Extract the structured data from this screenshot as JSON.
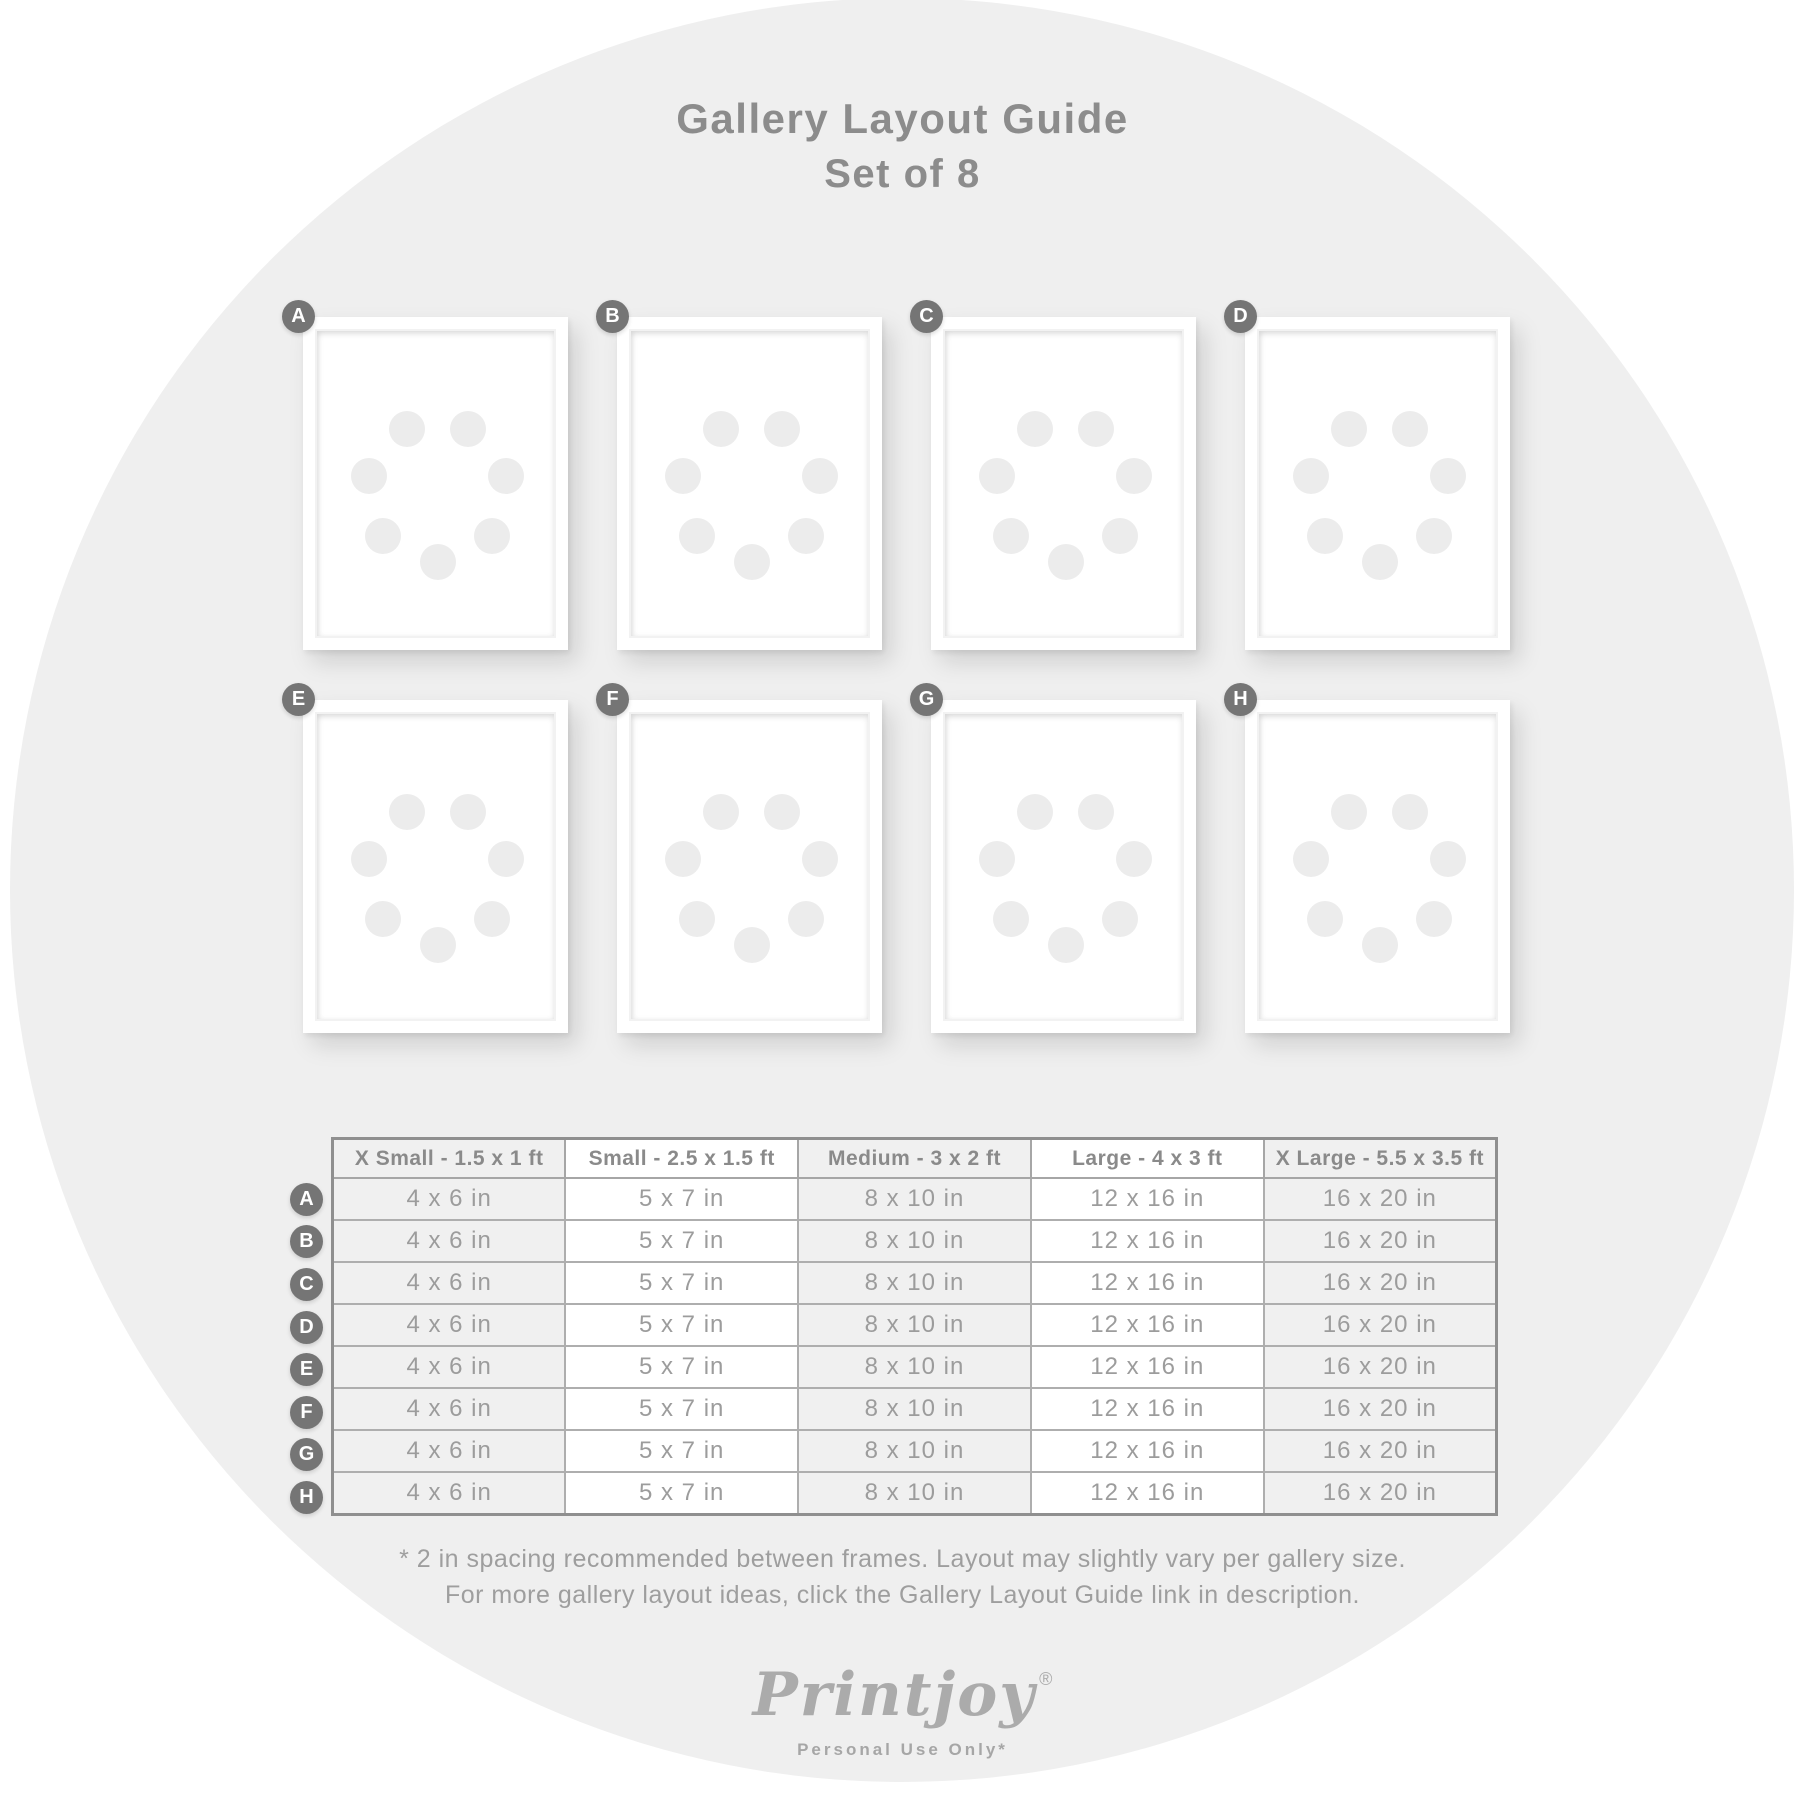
{
  "title": "Gallery Layout Guide",
  "subtitle": "Set of 8",
  "frames": [
    {
      "label": "A"
    },
    {
      "label": "B"
    },
    {
      "label": "C"
    },
    {
      "label": "D"
    },
    {
      "label": "E"
    },
    {
      "label": "F"
    },
    {
      "label": "G"
    },
    {
      "label": "H"
    }
  ],
  "frame_placeholder": {
    "dot_count": 7
  },
  "table": {
    "columns": [
      "X Small - 1.5 x 1 ft",
      "Small - 2.5 x 1.5 ft",
      "Medium - 3 x 2 ft",
      "Large - 4 x 3 ft",
      "X Large - 5.5 x 3.5 ft"
    ],
    "rows": [
      {
        "label": "A",
        "values": [
          "4 x 6 in",
          "5 x 7 in",
          "8 x 10 in",
          "12 x 16 in",
          "16 x 20 in"
        ]
      },
      {
        "label": "B",
        "values": [
          "4 x 6 in",
          "5 x 7 in",
          "8 x 10 in",
          "12 x 16 in",
          "16 x 20 in"
        ]
      },
      {
        "label": "C",
        "values": [
          "4 x 6 in",
          "5 x 7 in",
          "8 x 10 in",
          "12 x 16 in",
          "16 x 20 in"
        ]
      },
      {
        "label": "D",
        "values": [
          "4 x 6 in",
          "5 x 7 in",
          "8 x 10 in",
          "12 x 16 in",
          "16 x 20 in"
        ]
      },
      {
        "label": "E",
        "values": [
          "4 x 6 in",
          "5 x 7 in",
          "8 x 10 in",
          "12 x 16 in",
          "16 x 20 in"
        ]
      },
      {
        "label": "F",
        "values": [
          "4 x 6 in",
          "5 x 7 in",
          "8 x 10 in",
          "12 x 16 in",
          "16 x 20 in"
        ]
      },
      {
        "label": "G",
        "values": [
          "4 x 6 in",
          "5 x 7 in",
          "8 x 10 in",
          "12 x 16 in",
          "16 x 20 in"
        ]
      },
      {
        "label": "H",
        "values": [
          "4 x 6 in",
          "5 x 7 in",
          "8 x 10 in",
          "12 x 16 in",
          "16 x 20 in"
        ]
      }
    ]
  },
  "footnote": {
    "line1": "* 2 in spacing recommended between frames. Layout may slightly vary per gallery size.",
    "line2": "For more gallery layout ideas, click the Gallery Layout Guide link in description."
  },
  "logo": {
    "name": "Printjoy",
    "registered_mark": "®",
    "tagline": "Personal Use Only*"
  },
  "colors": {
    "circle_bg": "#efefef",
    "badge_bg": "#757575",
    "dot": "#ececec",
    "cell_shade": "#f0f0f0",
    "heading": "#8c8c8c",
    "cell_text": "#9c9c9c"
  }
}
